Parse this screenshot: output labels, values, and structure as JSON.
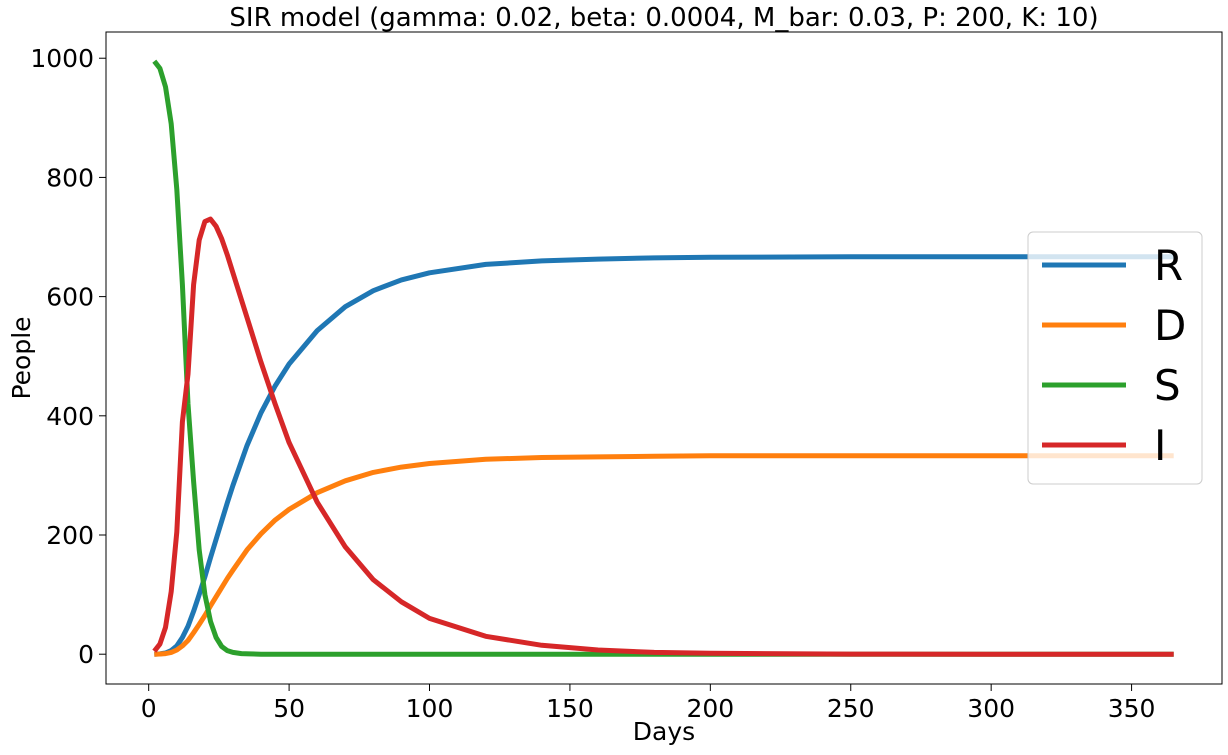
{
  "chart_data": {
    "type": "line",
    "title": "SIR model (gamma: 0.02, beta: 0.0004, M_bar: 0.03, P: 200, K: 10)",
    "xlabel": "Days",
    "ylabel": "People",
    "xlim": [
      -15.2,
      382.2
    ],
    "ylim": [
      -50,
      1044
    ],
    "xticks": [
      0,
      50,
      100,
      150,
      200,
      250,
      300,
      350
    ],
    "yticks": [
      0,
      200,
      400,
      600,
      800,
      1000
    ],
    "grid": false,
    "legend": {
      "placement": "right",
      "entries": [
        "R",
        "D",
        "S",
        "I"
      ]
    },
    "series": [
      {
        "name": "R",
        "color": "#1f77b4",
        "x": [
          2,
          4,
          6,
          8,
          10,
          12,
          14,
          16,
          18,
          20,
          22,
          25,
          28,
          30,
          35,
          40,
          45,
          50,
          60,
          70,
          80,
          90,
          100,
          120,
          140,
          160,
          180,
          200,
          250,
          300,
          365
        ],
        "y": [
          0,
          0.5,
          2,
          6,
          14,
          28,
          47,
          72,
          100,
          130,
          162,
          208,
          254,
          283,
          350,
          405,
          450,
          487,
          543,
          583,
          610,
          628,
          640,
          654,
          660,
          663,
          665,
          666,
          667,
          667,
          667
        ]
      },
      {
        "name": "D",
        "color": "#ff7f0e",
        "x": [
          2,
          4,
          6,
          8,
          10,
          12,
          14,
          16,
          18,
          20,
          22,
          25,
          28,
          30,
          35,
          40,
          45,
          50,
          60,
          70,
          80,
          90,
          100,
          120,
          140,
          160,
          180,
          200,
          250,
          300,
          365
        ],
        "y": [
          0,
          0.3,
          1,
          3,
          7,
          14,
          23,
          36,
          50,
          65,
          81,
          104,
          127,
          141,
          175,
          202,
          225,
          243,
          271,
          291,
          305,
          314,
          320,
          327,
          330,
          331,
          332,
          333,
          333,
          333,
          333
        ]
      },
      {
        "name": "S",
        "color": "#2ca02c",
        "x": [
          2,
          4,
          6,
          8,
          10,
          12,
          14,
          16,
          18,
          20,
          22,
          24,
          26,
          28,
          30,
          33,
          36,
          40,
          50,
          100,
          200,
          365
        ],
        "y": [
          995,
          983,
          952,
          890,
          780,
          620,
          420,
          290,
          175,
          100,
          55,
          28,
          13,
          6,
          3,
          1,
          0.5,
          0,
          0,
          0,
          0,
          0
        ]
      },
      {
        "name": "I",
        "color": "#d62728",
        "x": [
          2,
          4,
          6,
          8,
          10,
          12,
          14,
          16,
          18,
          20,
          22,
          24,
          26,
          28,
          30,
          35,
          40,
          45,
          50,
          60,
          70,
          80,
          90,
          100,
          120,
          140,
          160,
          180,
          200,
          250,
          300,
          365
        ],
        "y": [
          5,
          17,
          45,
          105,
          205,
          390,
          470,
          620,
          695,
          726,
          730,
          718,
          697,
          670,
          640,
          565,
          490,
          420,
          355,
          255,
          180,
          125,
          88,
          60,
          30,
          15,
          7,
          3,
          1.5,
          0.2,
          0,
          0
        ]
      }
    ]
  }
}
